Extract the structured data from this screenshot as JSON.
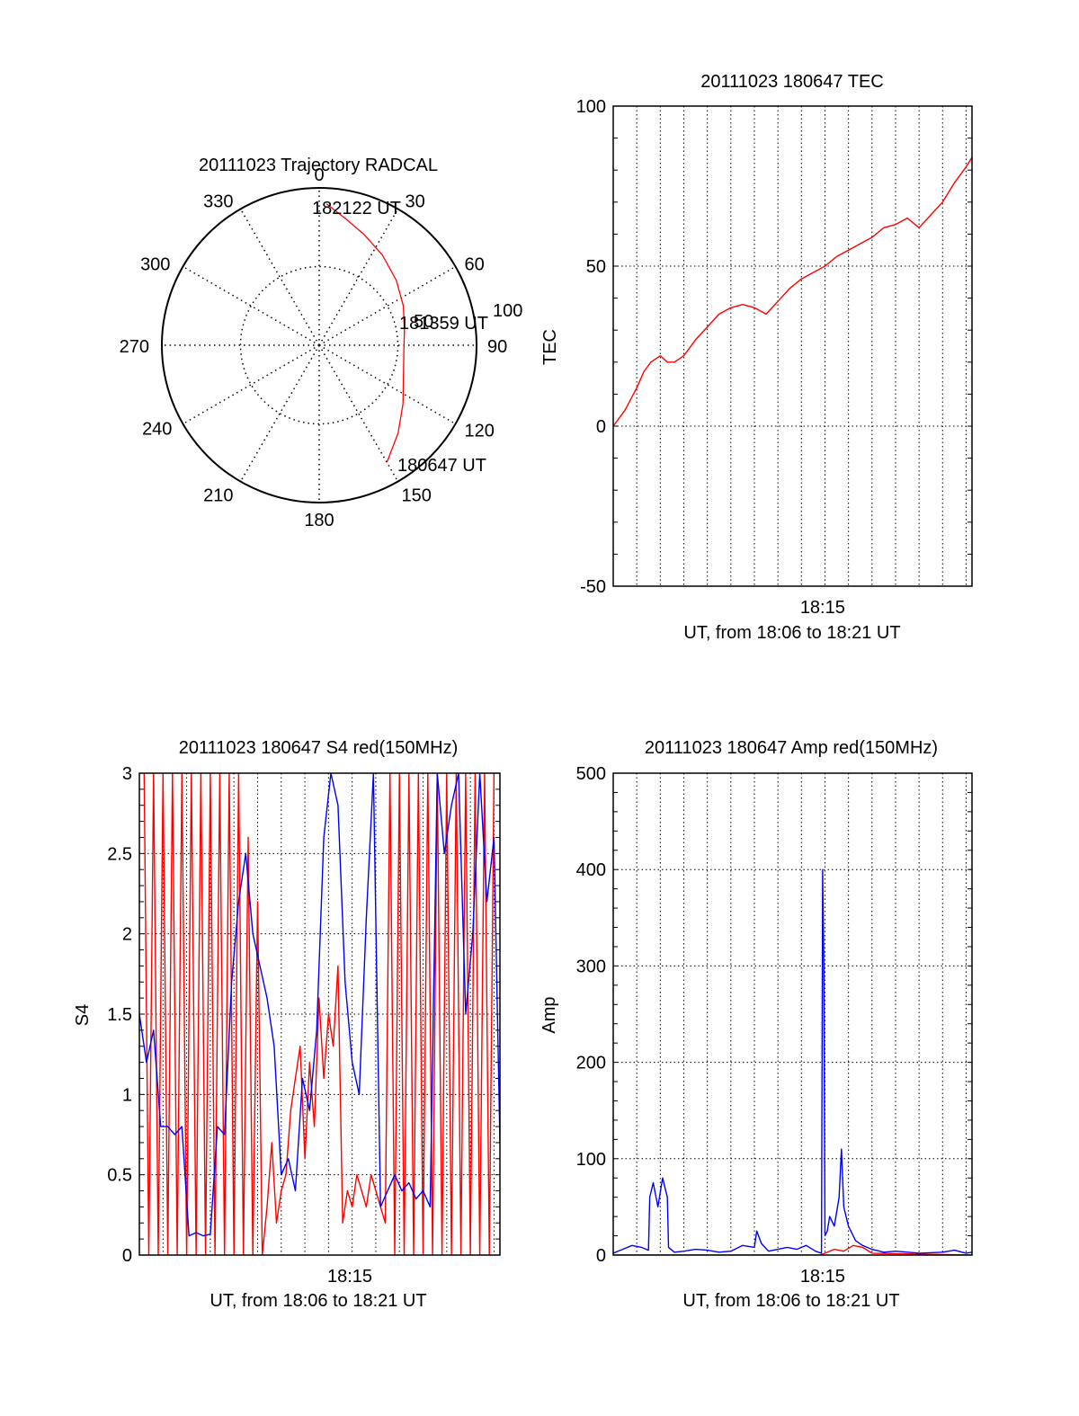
{
  "chart_data": [
    {
      "type": "polar",
      "title": "20111023 Trajectory RADCAL",
      "angle_labels": [
        "0",
        "30",
        "60",
        "90",
        "120",
        "150",
        "180",
        "210",
        "240",
        "270",
        "300",
        "330"
      ],
      "radial_labels": [
        "50",
        "100"
      ],
      "radial_range": [
        0,
        100
      ],
      "grid": true,
      "series": [
        {
          "color": "#ff0000",
          "points": [
            {
              "az": 3,
              "r": 90
            },
            {
              "az": 12,
              "r": 82
            },
            {
              "az": 22,
              "r": 76
            },
            {
              "az": 35,
              "r": 70
            },
            {
              "az": 50,
              "r": 64
            },
            {
              "az": 65,
              "r": 59
            },
            {
              "az": 80,
              "r": 55
            },
            {
              "az": 95,
              "r": 54
            },
            {
              "az": 110,
              "r": 57
            },
            {
              "az": 125,
              "r": 65
            },
            {
              "az": 138,
              "r": 75
            },
            {
              "az": 150,
              "r": 86
            }
          ]
        }
      ],
      "annotations": [
        "182122 UT",
        "181359 UT",
        "180647 UT"
      ]
    },
    {
      "type": "line",
      "title": "20111023 180647 TEC",
      "xlabel": "UT, from 18:06 to 18:21 UT",
      "ylabel": "TEC",
      "xlim": [
        0,
        15.25
      ],
      "ylim": [
        -50,
        100
      ],
      "x_ticks": [
        {
          "x": 8.9,
          "label": "18:15"
        }
      ],
      "y_ticks": [
        "-50",
        "0",
        "50",
        "100"
      ],
      "grid": true,
      "series": [
        {
          "color": "#ff0000",
          "x": [
            0.0,
            0.5,
            1.0,
            1.3,
            1.6,
            2.0,
            2.3,
            2.6,
            3.0,
            3.5,
            4.0,
            4.5,
            5.0,
            5.5,
            6.0,
            6.5,
            7.0,
            7.5,
            8.0,
            8.5,
            9.0,
            9.5,
            10.0,
            10.5,
            11.0,
            11.5,
            12.0,
            12.5,
            13.0,
            13.5,
            14.0,
            14.5,
            15.0,
            15.25
          ],
          "y": [
            0,
            5,
            12,
            17,
            20,
            22,
            20,
            20,
            22,
            27,
            31,
            35,
            37,
            38,
            37,
            35,
            39,
            43,
            46,
            48,
            50,
            53,
            55,
            57,
            59,
            62,
            63,
            65,
            62,
            66,
            70,
            76,
            81,
            84
          ]
        }
      ]
    },
    {
      "type": "line",
      "title": "20111023 180647 S4 red(150MHz)",
      "xlabel": "UT, from 18:06 to 18:21 UT",
      "ylabel": "S4",
      "xlim": [
        0,
        15.25
      ],
      "ylim": [
        0,
        3
      ],
      "x_ticks": [
        {
          "x": 8.9,
          "label": "18:15"
        }
      ],
      "y_ticks": [
        "0",
        "0.5",
        "1",
        "1.5",
        "2",
        "2.5",
        "3"
      ],
      "grid": true,
      "series": [
        {
          "color": "#ff0000",
          "x": [
            0.2,
            0.4,
            0.6,
            0.8,
            1.0,
            1.2,
            1.4,
            1.6,
            1.8,
            2.0,
            2.2,
            2.4,
            2.6,
            2.8,
            3.0,
            3.2,
            3.4,
            3.6,
            3.8,
            4.0,
            4.2,
            4.4,
            4.6,
            4.8,
            5.0,
            5.2,
            5.4,
            5.6,
            5.8,
            6.0,
            6.2,
            6.4,
            6.6,
            6.8,
            7.0,
            7.2,
            7.4,
            7.6,
            7.8,
            8.0,
            8.2,
            8.4,
            8.6,
            8.8,
            9.0,
            9.2,
            9.4,
            9.6,
            9.8,
            10.0,
            10.2,
            10.4,
            10.6,
            10.8,
            11.0,
            11.2,
            11.4,
            11.6,
            11.8,
            12.0,
            12.2,
            12.4,
            12.6,
            12.8,
            13.0,
            13.2,
            13.4,
            13.6,
            13.8,
            14.0,
            14.2,
            14.4,
            14.6,
            14.8,
            15.0
          ],
          "y": [
            3.0,
            0.0,
            3.0,
            0.0,
            3.0,
            0.0,
            3.0,
            0.0,
            3.0,
            0.0,
            3.0,
            0.0,
            3.0,
            0.0,
            3.0,
            0.0,
            3.0,
            0.0,
            3.0,
            0.0,
            3.0,
            0.0,
            2.6,
            0.0,
            2.2,
            0.0,
            0.3,
            0.7,
            0.2,
            0.4,
            0.5,
            0.9,
            1.1,
            1.3,
            0.6,
            1.2,
            0.8,
            1.6,
            1.1,
            1.5,
            1.3,
            1.8,
            0.2,
            0.4,
            0.3,
            0.5,
            0.4,
            0.3,
            0.5,
            0.4,
            0.3,
            0.2,
            3.0,
            0.0,
            3.0,
            0.0,
            3.0,
            0.0,
            3.0,
            0.0,
            3.0,
            0.0,
            3.0,
            0.0,
            3.0,
            0.0,
            3.0,
            0.0,
            3.0,
            0.0,
            3.0,
            0.0,
            3.0,
            0.0,
            3.0
          ]
        },
        {
          "color": "#0000ff",
          "x": [
            0.0,
            0.3,
            0.6,
            0.9,
            1.2,
            1.5,
            1.8,
            2.1,
            2.4,
            2.7,
            3.0,
            3.3,
            3.6,
            3.9,
            4.2,
            4.5,
            4.8,
            5.1,
            5.4,
            5.7,
            6.0,
            6.3,
            6.6,
            6.9,
            7.2,
            7.5,
            7.8,
            8.1,
            8.4,
            8.7,
            9.0,
            9.3,
            9.6,
            9.9,
            10.2,
            10.5,
            10.8,
            11.1,
            11.4,
            11.7,
            12.0,
            12.3,
            12.6,
            12.9,
            13.2,
            13.5,
            13.8,
            14.1,
            14.4,
            14.7,
            15.0,
            15.25
          ],
          "y": [
            1.5,
            1.2,
            1.4,
            0.8,
            0.8,
            0.75,
            0.8,
            0.12,
            0.14,
            0.12,
            0.13,
            0.8,
            0.75,
            1.7,
            2.2,
            2.5,
            2.0,
            1.8,
            1.6,
            1.3,
            0.5,
            0.6,
            0.4,
            1.1,
            0.9,
            1.4,
            2.6,
            3.0,
            2.8,
            1.7,
            1.2,
            1.0,
            2.1,
            3.0,
            0.3,
            0.4,
            0.5,
            0.4,
            0.45,
            0.35,
            0.4,
            0.3,
            3.0,
            2.5,
            2.8,
            3.0,
            1.5,
            2.0,
            3.0,
            2.2,
            2.6,
            0.7
          ]
        }
      ]
    },
    {
      "type": "line",
      "title": "20111023 180647 Amp red(150MHz)",
      "xlabel": "UT, from 18:06 to 18:21 UT",
      "ylabel": "Amp",
      "xlim": [
        0,
        15.25
      ],
      "ylim": [
        0,
        500
      ],
      "x_ticks": [
        {
          "x": 8.9,
          "label": "18:15"
        }
      ],
      "y_ticks": [
        "0",
        "100",
        "200",
        "300",
        "400",
        "500"
      ],
      "grid": true,
      "series": [
        {
          "color": "#ff0000",
          "x": [
            0.0,
            1.5,
            2.3,
            8.8,
            9.0,
            9.4,
            9.8,
            10.2,
            10.6,
            11.0,
            15.25
          ],
          "y": [
            0,
            0,
            0,
            0,
            2,
            6,
            4,
            10,
            8,
            2,
            0
          ]
        },
        {
          "color": "#0000ff",
          "x": [
            0.0,
            0.4,
            0.8,
            1.2,
            1.5,
            1.55,
            1.7,
            1.9,
            2.1,
            2.3,
            2.35,
            2.6,
            3.0,
            3.5,
            4.0,
            4.5,
            5.0,
            5.5,
            6.0,
            6.1,
            6.3,
            6.6,
            7.0,
            7.4,
            7.8,
            8.2,
            8.6,
            8.85,
            8.9,
            8.95,
            9.0,
            9.1,
            9.2,
            9.4,
            9.6,
            9.7,
            9.8,
            10.0,
            10.3,
            10.6,
            11.0,
            11.5,
            12.0,
            13.0,
            14.0,
            14.5,
            15.0,
            15.25
          ],
          "y": [
            2,
            6,
            10,
            8,
            5,
            60,
            75,
            50,
            80,
            60,
            8,
            3,
            4,
            6,
            5,
            3,
            4,
            10,
            8,
            25,
            12,
            4,
            6,
            8,
            6,
            10,
            4,
            2,
            400,
            300,
            20,
            25,
            40,
            30,
            60,
            110,
            50,
            30,
            15,
            10,
            6,
            3,
            4,
            2,
            3,
            5,
            2,
            3
          ]
        }
      ]
    }
  ]
}
